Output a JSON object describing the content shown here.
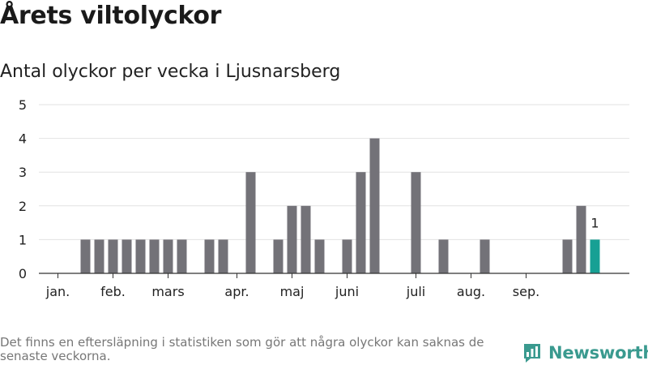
{
  "title": "Årets viltolyckor",
  "subtitle": "Antal olyckor per vecka i Ljusnarsberg",
  "footnote": "Det finns en eftersläpning i statistiken som gör att några olyckor kan saknas de senaste veckorna.",
  "brand": {
    "name": "Newsworthy",
    "icon": "bar-chart-logo-icon",
    "color": "#3a9a8f"
  },
  "colors": {
    "bar": "#737278",
    "highlight": "#17a094",
    "grid": "#e2e2e2",
    "axis": "#333333"
  },
  "chart_data": {
    "type": "bar",
    "title": "Antal olyckor per vecka i Ljusnarsberg",
    "xlabel": "",
    "ylabel": "",
    "ylim": [
      0,
      5
    ],
    "yticks": [
      0,
      1,
      2,
      3,
      4,
      5
    ],
    "grid": true,
    "weeks": [
      1,
      2,
      3,
      4,
      5,
      6,
      7,
      8,
      9,
      10,
      11,
      12,
      13,
      14,
      15,
      16,
      17,
      18,
      19,
      20,
      21,
      22,
      23,
      24,
      25,
      26,
      27,
      28,
      29,
      30,
      31,
      32,
      33,
      34,
      35,
      36,
      37,
      38,
      39,
      40,
      41
    ],
    "values": [
      0,
      0,
      0,
      0,
      1,
      1,
      1,
      1,
      1,
      1,
      1,
      1,
      0,
      1,
      1,
      0,
      3,
      0,
      1,
      2,
      2,
      1,
      0,
      1,
      3,
      4,
      0,
      0,
      3,
      0,
      1,
      0,
      0,
      1,
      0,
      0,
      0,
      0,
      0,
      1,
      2
    ],
    "highlight": {
      "week": 42,
      "value": 1,
      "label": "1"
    },
    "month_labels": [
      {
        "label": "jan.",
        "week": 3
      },
      {
        "label": "feb.",
        "week": 7
      },
      {
        "label": "mars",
        "week": 11
      },
      {
        "label": "apr.",
        "week": 16
      },
      {
        "label": "maj",
        "week": 20
      },
      {
        "label": "juni",
        "week": 24
      },
      {
        "label": "juli",
        "week": 29
      },
      {
        "label": "aug.",
        "week": 33
      },
      {
        "label": "sep.",
        "week": 37
      }
    ]
  }
}
